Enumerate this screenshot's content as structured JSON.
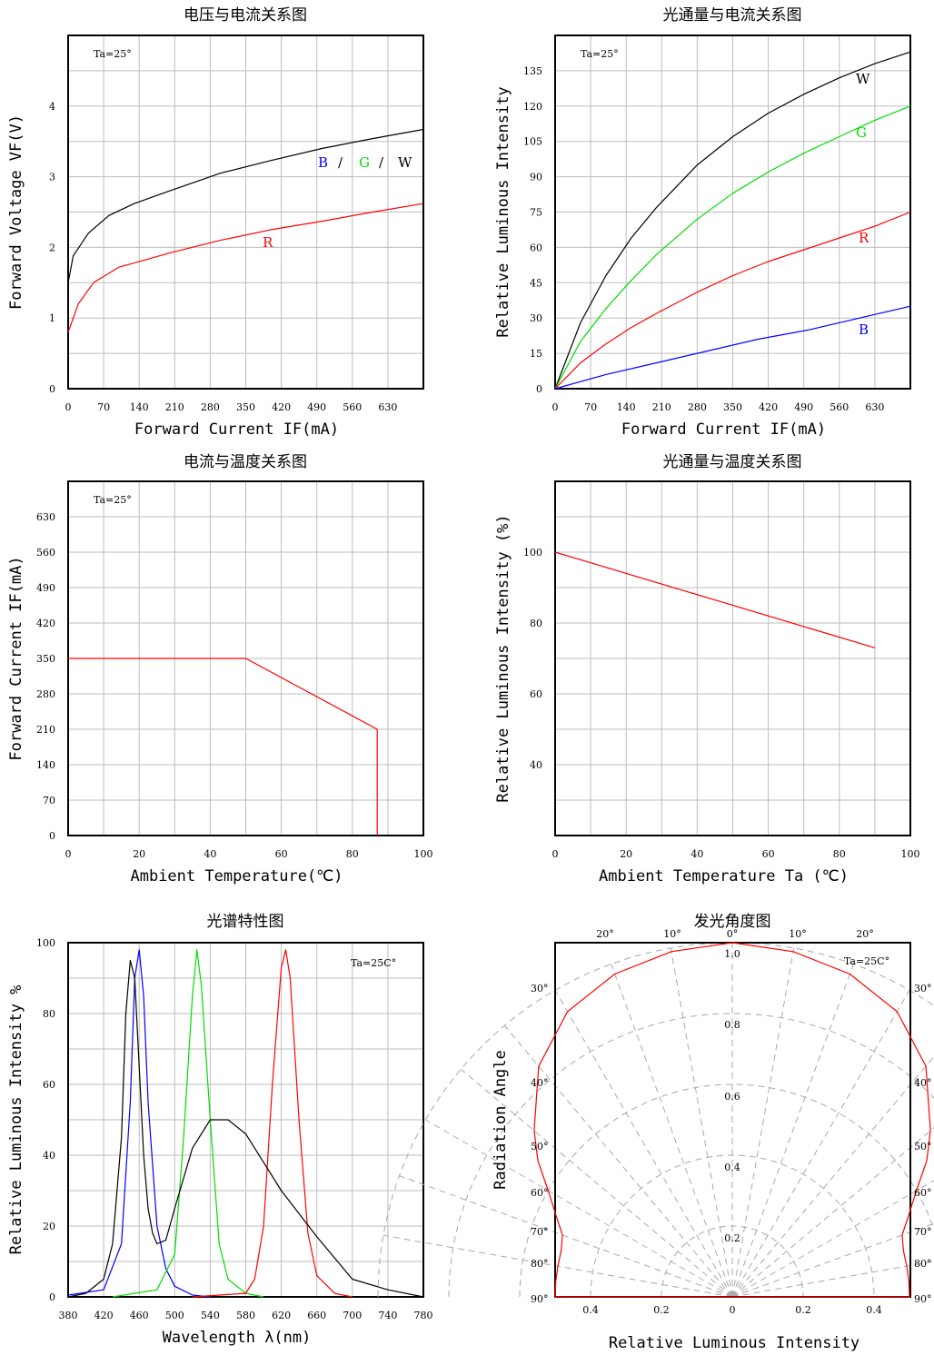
{
  "chart_data": [
    {
      "type": "line",
      "title": "电压与电流关系图",
      "xlabel": "Forward Current IF(mA)",
      "ylabel": "Forward Voltage VF(V)",
      "note": "Ta=25°",
      "xlim": [
        0,
        700
      ],
      "ylim": [
        0,
        5
      ],
      "x_ticks": [
        "0",
        "70",
        "140",
        "210",
        "280",
        "350",
        "420",
        "490",
        "560",
        "630"
      ],
      "y_ticks": [
        "0",
        "1",
        "2",
        "3",
        "4"
      ],
      "legend_text": {
        "b": "B",
        "slash1": "/",
        "g": "G",
        "slash2": "/",
        "w": "W",
        "r": "R"
      },
      "series": [
        {
          "name": "B/G/W",
          "color": "#000000",
          "x": [
            0,
            10,
            40,
            80,
            130,
            200,
            300,
            400,
            500,
            600,
            700
          ],
          "y": [
            1.5,
            1.88,
            2.2,
            2.45,
            2.62,
            2.8,
            3.05,
            3.23,
            3.4,
            3.54,
            3.67
          ]
        },
        {
          "name": "R",
          "color": "#ff0000",
          "x": [
            0,
            20,
            50,
            100,
            150,
            200,
            300,
            400,
            500,
            600,
            700
          ],
          "y": [
            0.8,
            1.2,
            1.5,
            1.72,
            1.82,
            1.92,
            2.1,
            2.25,
            2.37,
            2.5,
            2.62
          ]
        }
      ]
    },
    {
      "type": "line",
      "title": "光通量与电流关系图",
      "xlabel": "Forward Current IF(mA)",
      "ylabel": "Relative Luminous Intensity",
      "note": "Ta=25°",
      "xlim": [
        0,
        700
      ],
      "ylim": [
        0,
        150
      ],
      "x_ticks": [
        "0",
        "70",
        "140",
        "210",
        "280",
        "350",
        "420",
        "490",
        "560",
        "630"
      ],
      "y_ticks": [
        "0",
        "15",
        "30",
        "45",
        "60",
        "75",
        "90",
        "105",
        "120",
        "135"
      ],
      "labels": {
        "w": "W",
        "g": "G",
        "r": "R",
        "b": "B"
      },
      "series": [
        {
          "name": "W",
          "color": "#000000",
          "x": [
            0,
            50,
            100,
            150,
            200,
            280,
            350,
            420,
            490,
            560,
            630,
            700
          ],
          "y": [
            0,
            28,
            48,
            64,
            77,
            95,
            107,
            117,
            125,
            132,
            138,
            143
          ]
        },
        {
          "name": "G",
          "color": "#00dd00",
          "x": [
            0,
            50,
            100,
            150,
            200,
            280,
            350,
            420,
            490,
            560,
            630,
            700
          ],
          "y": [
            0,
            20,
            34,
            46,
            57,
            72,
            83,
            92,
            100,
            107,
            114,
            120
          ]
        },
        {
          "name": "R",
          "color": "#ff0000",
          "x": [
            0,
            50,
            100,
            150,
            200,
            280,
            350,
            420,
            490,
            560,
            630,
            700
          ],
          "y": [
            0,
            11,
            19,
            26,
            32,
            41,
            48,
            54,
            59,
            64,
            69,
            75
          ]
        },
        {
          "name": "B",
          "color": "#0000ff",
          "x": [
            0,
            100,
            200,
            300,
            400,
            500,
            600,
            700
          ],
          "y": [
            0,
            6,
            11,
            16,
            21,
            25,
            30,
            35
          ]
        }
      ]
    },
    {
      "type": "line",
      "title": "电流与温度关系图",
      "xlabel": "Ambient Temperature(℃)",
      "ylabel": "Forward Current IF(mA)",
      "note": "Ta=25°",
      "xlim": [
        0,
        100
      ],
      "ylim": [
        0,
        700
      ],
      "x_ticks": [
        "0",
        "20",
        "40",
        "60",
        "80",
        "100"
      ],
      "y_ticks": [
        "0",
        "70",
        "140",
        "210",
        "280",
        "350",
        "420",
        "490",
        "560",
        "630"
      ],
      "series": [
        {
          "color": "#ff0000",
          "x": [
            0,
            50,
            87,
            87
          ],
          "y": [
            350,
            350,
            210,
            0
          ]
        }
      ]
    },
    {
      "type": "line",
      "title": "光通量与温度关系图",
      "xlabel": "Ambient Temperature Ta (℃)",
      "ylabel": "Relative Luminous Intensity (%)",
      "xlim": [
        0,
        100
      ],
      "ylim": [
        20,
        120
      ],
      "x_ticks": [
        "0",
        "20",
        "40",
        "60",
        "80",
        "100"
      ],
      "y_ticks": [
        "40",
        "60",
        "80",
        "100"
      ],
      "series": [
        {
          "color": "#ff0000",
          "x": [
            0,
            90
          ],
          "y": [
            100,
            73
          ]
        }
      ]
    },
    {
      "type": "line",
      "title": "光谱特性图",
      "xlabel": "Wavelength λ(nm)",
      "ylabel": "Relative Luminous Intensity %",
      "note": "Ta=25C°",
      "xlim": [
        380,
        780
      ],
      "ylim": [
        0,
        100
      ],
      "x_ticks": [
        "380",
        "420",
        "460",
        "500",
        "540",
        "580",
        "620",
        "660",
        "700",
        "740",
        "780"
      ],
      "y_ticks": [
        "0",
        "20",
        "40",
        "60",
        "80",
        "100"
      ],
      "series": [
        {
          "color": "#0000ff",
          "x": [
            380,
            420,
            440,
            450,
            455,
            460,
            465,
            470,
            480,
            490,
            500,
            520,
            540
          ],
          "y": [
            0.5,
            2,
            15,
            55,
            90,
            98,
            85,
            55,
            20,
            8,
            3,
            0.5,
            0
          ]
        },
        {
          "color": "#00dd00",
          "x": [
            430,
            480,
            500,
            510,
            520,
            525,
            530,
            540,
            550,
            560,
            580,
            600
          ],
          "y": [
            0,
            2,
            12,
            45,
            85,
            98,
            88,
            50,
            15,
            5,
            1,
            0
          ]
        },
        {
          "color": "#ff0000",
          "x": [
            520,
            580,
            590,
            600,
            610,
            620,
            625,
            630,
            640,
            650,
            660,
            680,
            700
          ],
          "y": [
            0,
            1,
            5,
            20,
            60,
            93,
            98,
            90,
            50,
            18,
            6,
            1,
            0
          ]
        },
        {
          "color": "#000000",
          "x": [
            380,
            400,
            420,
            430,
            440,
            445,
            450,
            455,
            460,
            465,
            470,
            475,
            480,
            490,
            500,
            520,
            540,
            560,
            580,
            600,
            620,
            660,
            700,
            740,
            780
          ],
          "y": [
            0,
            1,
            5,
            15,
            45,
            80,
            95,
            90,
            65,
            40,
            25,
            18,
            15,
            16,
            25,
            42,
            50,
            50,
            46,
            38,
            30,
            17,
            5,
            2,
            0
          ]
        }
      ]
    },
    {
      "type": "line",
      "title": "发光角度图",
      "xlabel": "Relative Luminous Intensity",
      "ylabel": "Radiation Angle",
      "note": "Ta=25C°",
      "radial_ticks": [
        "0.2",
        "0.4",
        "0.6",
        "0.8",
        "1.0"
      ],
      "angle_labels_top": [
        "20°",
        "10°",
        "0°",
        "10°",
        "20°"
      ],
      "angle_labels_left": [
        "30°",
        "40°",
        "50°",
        "60°",
        "70°",
        "80°",
        "90°"
      ],
      "angle_labels_right": [
        "30°",
        "40°",
        "50°",
        "60°",
        "70°",
        "80°",
        "90°"
      ],
      "x_ticks": [
        "0.4",
        "0.2",
        "0",
        "0.2",
        "0.4"
      ],
      "series": [
        {
          "color": "#ff0000",
          "angle_deg": [
            0,
            10,
            20,
            30,
            40,
            50,
            55,
            60,
            65,
            70,
            75,
            80,
            85,
            90
          ],
          "intensity": [
            1.0,
            0.99,
            0.97,
            0.93,
            0.85,
            0.73,
            0.67,
            0.6,
            0.55,
            0.51,
            0.5,
            0.5,
            0.5,
            0.5
          ]
        }
      ]
    }
  ]
}
